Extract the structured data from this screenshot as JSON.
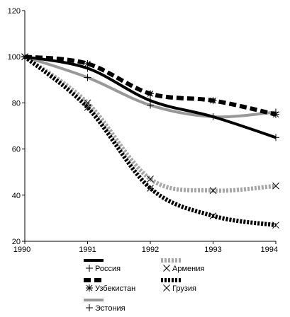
{
  "chart_data": {
    "type": "line",
    "title": "",
    "xlabel": "",
    "ylabel": "",
    "x": [
      1990,
      1991,
      1992,
      1993,
      1994
    ],
    "x_tick_labels": [
      "1990",
      "1991",
      "1992",
      "1993",
      "1994"
    ],
    "ylim": [
      20,
      120
    ],
    "y_ticks": [
      20,
      40,
      60,
      80,
      100,
      120
    ],
    "y_tick_labels": [
      "20",
      "40",
      "60",
      "80",
      "100",
      "120"
    ],
    "grid": false,
    "legend_position": "bottom",
    "series": [
      {
        "name": "Россия",
        "values": [
          100,
          95,
          81,
          74,
          65
        ],
        "color": "#000000",
        "style": "solid",
        "marker": "plus"
      },
      {
        "name": "Армения",
        "values": [
          100,
          80,
          47,
          42,
          44
        ],
        "color": "#a6a6a6",
        "style": "dotted",
        "marker": "x"
      },
      {
        "name": "Узбекистан",
        "values": [
          100,
          97,
          84,
          81,
          75
        ],
        "color": "#000000",
        "style": "dashed",
        "marker": "asterisk"
      },
      {
        "name": "Грузия",
        "values": [
          100,
          78,
          43,
          31,
          27
        ],
        "color": "#000000",
        "style": "dotted",
        "marker": "x"
      },
      {
        "name": "Эстония",
        "values": [
          100,
          91,
          79,
          74,
          76
        ],
        "color": "#999999",
        "style": "solid",
        "marker": "plus"
      }
    ]
  }
}
